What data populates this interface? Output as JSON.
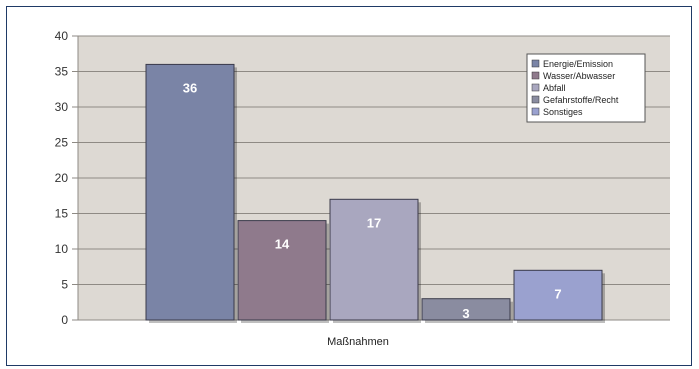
{
  "chart_data": {
    "type": "bar",
    "xlabel": "Maßnahmen",
    "ylim": [
      0,
      40
    ],
    "yticks": [
      0,
      5,
      10,
      15,
      20,
      25,
      30,
      35,
      40
    ],
    "grid": true,
    "legend_position": "top-right",
    "series": [
      {
        "name": "Energie/Emission",
        "value": 36,
        "color": "#7a84a6"
      },
      {
        "name": "Wasser/Abwasser",
        "value": 14,
        "color": "#8f7a8c"
      },
      {
        "name": "Abfall",
        "value": 17,
        "color": "#a9a7bf"
      },
      {
        "name": "Gefahrstoffe/Recht",
        "value": 3,
        "color": "#8a8ca0"
      },
      {
        "name": "Sonstiges",
        "value": 7,
        "color": "#9aa1cf"
      }
    ]
  },
  "colors": {
    "plot_bg": "#ddd9d3",
    "grid": "#8e8a84",
    "frame": "#1f3a66"
  }
}
